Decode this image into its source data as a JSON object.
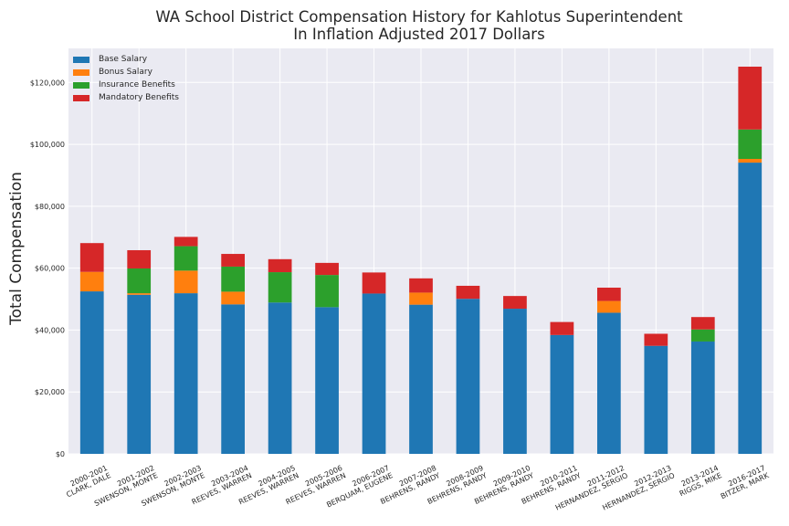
{
  "chart_data": {
    "type": "bar",
    "stacked": true,
    "title": "WA School District Compensation History for Kahlotus Superintendent\nIn Inflation Adjusted 2017 Dollars",
    "xlabel": "",
    "ylabel": "Total Compensation",
    "ylim": [
      0,
      131000
    ],
    "yticks": [
      0,
      20000,
      40000,
      60000,
      80000,
      100000,
      120000
    ],
    "ytick_labels": [
      "$0",
      "$20,000",
      "$40,000",
      "$60,000",
      "$80,000",
      "$100,000",
      "$120,000"
    ],
    "grid": true,
    "legend_position": "top-left",
    "categories": [
      "2000-2001\nCLARK, DALE",
      "2001-2002\nSWENSON, MONTE",
      "2002-2003\nSWENSON, MONTE",
      "2003-2004\nREEVES, WARREN",
      "2004-2005\nREEVES, WARREN",
      "2005-2006\nREEVES, WARREN",
      "2006-2007\nBERQUAM, EUGENE",
      "2007-2008\nBEHRENS, RANDY",
      "2008-2009\nBEHRENS, RANDY",
      "2009-2010\nBEHRENS, RANDY",
      "2010-2011\nBEHRENS, RANDY",
      "2011-2012\nHERNANDEZ, SERGIO",
      "2012-2013\nHERNANDEZ, SERGIO",
      "2013-2014\nRIGGS, MIKE",
      "2016-2017\nBITZER, MARK"
    ],
    "series": [
      {
        "name": "Base Salary",
        "color": "#1f77b4",
        "values": [
          52500,
          51400,
          51900,
          48300,
          48900,
          47400,
          51800,
          48200,
          50100,
          46900,
          38400,
          45600,
          34900,
          36300,
          94100
        ]
      },
      {
        "name": "Bonus Salary",
        "color": "#ff7f0e",
        "values": [
          6300,
          500,
          7300,
          4100,
          0,
          0,
          0,
          3900,
          0,
          0,
          0,
          3800,
          0,
          0,
          1200
        ]
      },
      {
        "name": "Insurance Benefits",
        "color": "#2ca02c",
        "values": [
          0,
          8000,
          7900,
          8100,
          9800,
          10400,
          0,
          0,
          0,
          0,
          0,
          0,
          0,
          3900,
          9500
        ]
      },
      {
        "name": "Mandatory Benefits",
        "color": "#d62728",
        "values": [
          9300,
          5900,
          3000,
          4100,
          4200,
          3900,
          6800,
          4600,
          4200,
          4100,
          4200,
          4300,
          3900,
          4000,
          20300
        ]
      }
    ]
  }
}
